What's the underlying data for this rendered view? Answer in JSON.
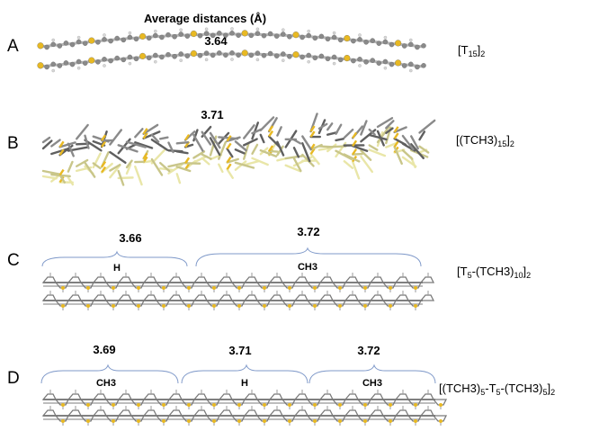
{
  "heading": "Average distances (Å)",
  "panels": [
    {
      "letter": "A",
      "formula": {
        "pre": "[T",
        "sub1": "15",
        "mid": "]",
        "sub2": "2"
      },
      "distances": [
        "3.64"
      ]
    },
    {
      "letter": "B",
      "formula": {
        "pre": "[(TCH3)",
        "sub1": "15",
        "mid": "]",
        "sub2": "2"
      },
      "distances": [
        "3.71"
      ]
    },
    {
      "letter": "C",
      "formula": {
        "pre": "[T",
        "sub1": "5",
        "mid": "-(TCH3)",
        "sub2": "10",
        "post": "]",
        "sub3": "2"
      },
      "distances": [
        "3.66",
        "3.72"
      ],
      "segments": [
        "H",
        "CH3"
      ]
    },
    {
      "letter": "D",
      "formula": {
        "pre": "[(TCH3)",
        "sub1": "5",
        "mid": "-T",
        "sub2": "5",
        "post": "-(TCH3)",
        "sub3": "5",
        "end": "]",
        "sub4": "2"
      },
      "distances": [
        "3.69",
        "3.71",
        "3.72"
      ],
      "segments": [
        "CH3",
        "H",
        "CH3"
      ]
    }
  ],
  "colors": {
    "sulfur": "#e8b923",
    "carbon": "#8a8a8a",
    "hydrogen": "#d8d8d8",
    "strand_light": "#e9e6a8",
    "strand_dark": "#5f5f5f",
    "brace": "#7f99c9"
  }
}
